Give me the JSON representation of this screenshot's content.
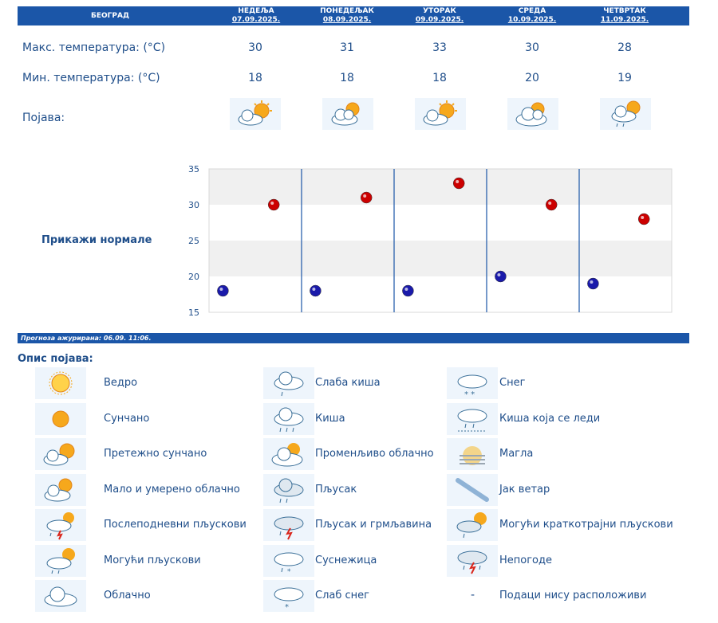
{
  "header": {
    "city": "БЕОГРАД",
    "days": [
      {
        "name": "НЕДЕЉА",
        "date": "07.09.2025."
      },
      {
        "name": "ПОНЕДЕЉАК",
        "date": "08.09.2025."
      },
      {
        "name": "УТОРАК",
        "date": "09.09.2025."
      },
      {
        "name": "СРЕДА",
        "date": "10.09.2025."
      },
      {
        "name": "ЧЕТВРТАК",
        "date": "11.09.2025."
      }
    ]
  },
  "rows": {
    "max_label": "Макс. температура: (°C)",
    "min_label": "Мин. температура: (°C)",
    "phenomenon_label": "Појава:"
  },
  "max_temps": [
    "30",
    "31",
    "33",
    "30",
    "28"
  ],
  "min_temps": [
    "18",
    "18",
    "18",
    "20",
    "19"
  ],
  "day_icons": [
    "mostly-sunny-icon",
    "partly-cloudy-icon",
    "mostly-sunny-icon",
    "variable-cloudy-icon",
    "possible-showers-icon"
  ],
  "chart_data": {
    "type": "scatter",
    "categories": [
      "НЕДЕЉА",
      "ПОНЕДЕЉАК",
      "УТОРАК",
      "СРЕДА",
      "ЧЕТВРТАК"
    ],
    "series": [
      {
        "values": [
          30,
          31,
          33,
          30,
          28
        ],
        "color": "#cc0000"
      },
      {
        "values": [
          18,
          18,
          18,
          20,
          19
        ],
        "color": "#1a1aaa"
      }
    ],
    "yticks": [
      "35",
      "30",
      "25",
      "20",
      "15"
    ],
    "ylim": [
      15,
      35
    ],
    "grid": true
  },
  "normals_label": "Прикажи нормале",
  "updated": "Прогноза ажурирана:  06.09.  11:06.",
  "legend": {
    "title": "Опис појава:",
    "items": [
      {
        "icon": "clear-icon",
        "label": "Ведро"
      },
      {
        "icon": "sunny-icon",
        "label": "Сунчано"
      },
      {
        "icon": "mostly-sunny-icon",
        "label": "Претежно сунчано"
      },
      {
        "icon": "partly-cloudy-icon",
        "label": "Мало и умерено облачно"
      },
      {
        "icon": "afternoon-showers-icon",
        "label": "Послеподневни пљускови"
      },
      {
        "icon": "possible-showers-icon",
        "label": "Могући пљускови"
      },
      {
        "icon": "cloudy-icon",
        "label": "Облачно"
      },
      {
        "icon": "light-rain-icon",
        "label": "Слаба киша"
      },
      {
        "icon": "rain-icon",
        "label": "Киша"
      },
      {
        "icon": "variable-cloudy-icon",
        "label": "Променљиво облачно"
      },
      {
        "icon": "showers-icon",
        "label": "Пљусак"
      },
      {
        "icon": "thunder-showers-icon",
        "label": "Пљусак и грмљавина"
      },
      {
        "icon": "sleet-icon",
        "label": "Суснежица"
      },
      {
        "icon": "light-snow-icon",
        "label": "Слаб снег"
      },
      {
        "icon": "snow-icon",
        "label": "Снег"
      },
      {
        "icon": "freezing-rain-icon",
        "label": "Киша која се леди"
      },
      {
        "icon": "fog-icon",
        "label": "Магла"
      },
      {
        "icon": "strong-wind-icon",
        "label": "Јак ветар"
      },
      {
        "icon": "brief-showers-icon",
        "label": "Могући краткотрајни пљускови"
      },
      {
        "icon": "storms-icon",
        "label": "Непогоде"
      },
      {
        "icon": "no-data-icon",
        "label": "Подаци нису расположиви",
        "symbol": "-"
      }
    ]
  }
}
